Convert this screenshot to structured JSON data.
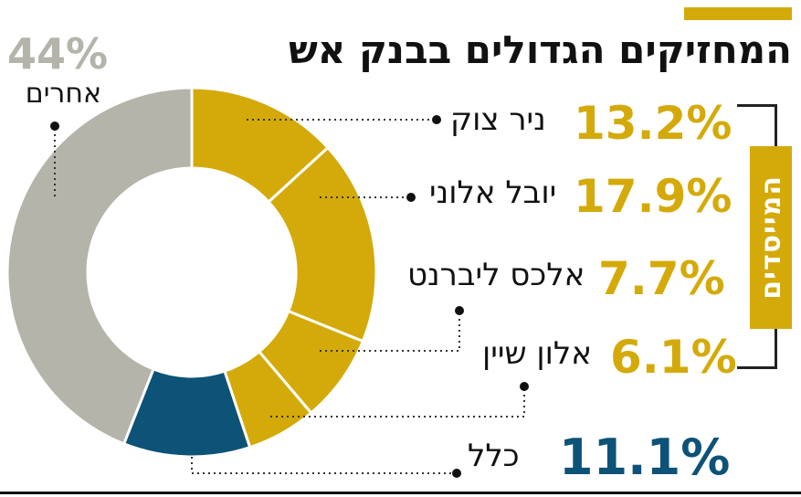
{
  "title": "המחזיקים הגדולים בבנק אש",
  "colors": {
    "gold": "#d4aa0a",
    "gray": "#b4b4aa",
    "blue": "#0d5277",
    "text": "#111111"
  },
  "founders_label": "המייסדים",
  "chart_data": {
    "type": "donut",
    "title": "המחזיקים הגדולים בבנק אש",
    "slices": [
      {
        "label": "ניר צוק",
        "value": 13.2,
        "value_label": "13.2%",
        "group": "המייסדים",
        "color": "#d4aa0a"
      },
      {
        "label": "יובל אלוני",
        "value": 17.9,
        "value_label": "17.9%",
        "group": "המייסדים",
        "color": "#d4aa0a"
      },
      {
        "label": "אלכס ליברנט",
        "value": 7.7,
        "value_label": "7.7%",
        "group": "המייסדים",
        "color": "#d4aa0a"
      },
      {
        "label": "אלון שיין",
        "value": 6.1,
        "value_label": "6.1%",
        "group": "המייסדים",
        "color": "#d4aa0a"
      },
      {
        "label": "כלל",
        "value": 11.1,
        "value_label": "11.1%",
        "group": "",
        "color": "#0d5277"
      },
      {
        "label": "אחרים",
        "value": 44,
        "value_label": "44%",
        "group": "",
        "color": "#b4b4aa"
      }
    ]
  }
}
